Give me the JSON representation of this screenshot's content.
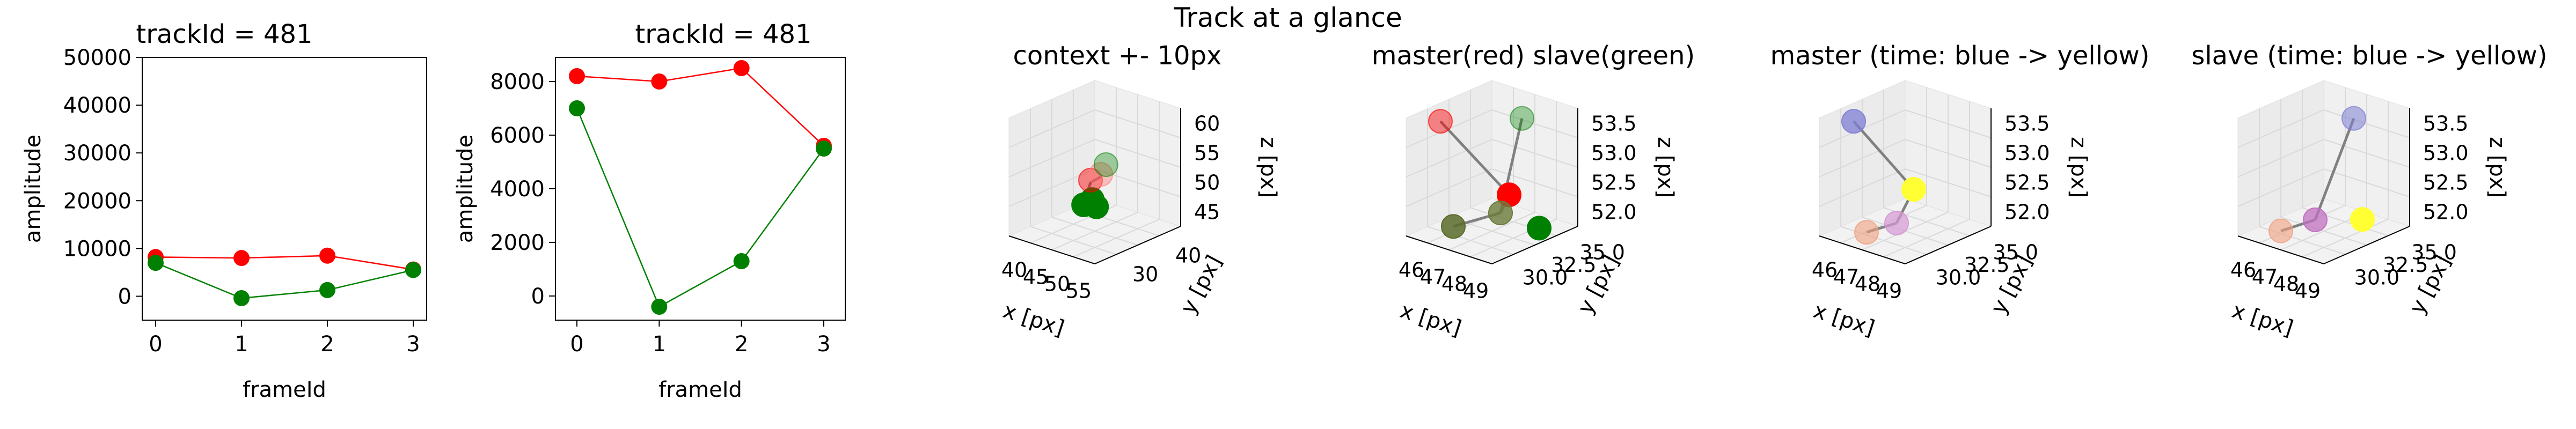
{
  "figure": {
    "suptitle": "Track at a glance"
  },
  "colors": {
    "red": "#ff0000",
    "green": "#008000",
    "gray": "#808080",
    "pane": "#f2f2f2",
    "grid": "#d9d9d9",
    "blue": "#7f7fd6",
    "yellow": "#ffff33"
  },
  "chart_data": [
    {
      "type": "line",
      "title": "trackId = 481",
      "xlabel": "frameId",
      "ylabel": "amplitude",
      "x": [
        0,
        1,
        2,
        3
      ],
      "xticks": [
        "0",
        "1",
        "2",
        "3"
      ],
      "yticks": [
        "0",
        "10000",
        "20000",
        "30000",
        "40000",
        "50000"
      ],
      "ylim": [
        -5000,
        50000
      ],
      "series": [
        {
          "color": "red",
          "values": [
            8200,
            8000,
            8500,
            5600
          ]
        },
        {
          "color": "green",
          "values": [
            7000,
            -400,
            1300,
            5500
          ]
        }
      ],
      "grid": false
    },
    {
      "type": "line",
      "title": "trackId = 481",
      "xlabel": "frameId",
      "ylabel": "amplitude",
      "x": [
        0,
        1,
        2,
        3
      ],
      "xticks": [
        "0",
        "1",
        "2",
        "3"
      ],
      "yticks": [
        "0",
        "2000",
        "4000",
        "6000",
        "8000"
      ],
      "ylim": [
        -900,
        8900
      ],
      "series": [
        {
          "color": "red",
          "values": [
            8200,
            8000,
            8500,
            5600
          ]
        },
        {
          "color": "green",
          "values": [
            7000,
            -400,
            1300,
            5500
          ]
        }
      ],
      "grid": false
    },
    {
      "type": "scatter",
      "title": "context +- 10px",
      "xlabel": "x [px]",
      "ylabel": "y [px]",
      "zlabel": "z [px]",
      "xticks": [
        "40",
        "45",
        "50",
        "55"
      ],
      "yticks": [
        "30",
        "40"
      ],
      "zticks": [
        "45",
        "50",
        "55",
        "60"
      ]
    },
    {
      "type": "scatter",
      "title": "master(red) slave(green)",
      "xlabel": "x [px]",
      "ylabel": "y [px]",
      "zlabel": "z [px]",
      "xticks": [
        "46",
        "47",
        "48",
        "49"
      ],
      "yticks": [
        "30.0",
        "32.5",
        "35.0"
      ],
      "zticks": [
        "52.0",
        "52.5",
        "53.0",
        "53.5"
      ]
    },
    {
      "type": "scatter",
      "title": "master (time: blue -> yellow)",
      "xlabel": "x [px]",
      "ylabel": "y [px]",
      "zlabel": "z [px]",
      "xticks": [
        "46",
        "47",
        "48",
        "49"
      ],
      "yticks": [
        "30.0",
        "32.5",
        "35.0"
      ],
      "zticks": [
        "52.0",
        "52.5",
        "53.0",
        "53.5"
      ]
    },
    {
      "type": "scatter",
      "title": "slave (time: blue -> yellow)",
      "xlabel": "x [px]",
      "ylabel": "y [px]",
      "zlabel": "z [px]",
      "xticks": [
        "46",
        "47",
        "48",
        "49"
      ],
      "yticks": [
        "30.0",
        "32.5",
        "35.0"
      ],
      "zticks": [
        "52.0",
        "52.5",
        "53.0",
        "53.5"
      ]
    }
  ]
}
